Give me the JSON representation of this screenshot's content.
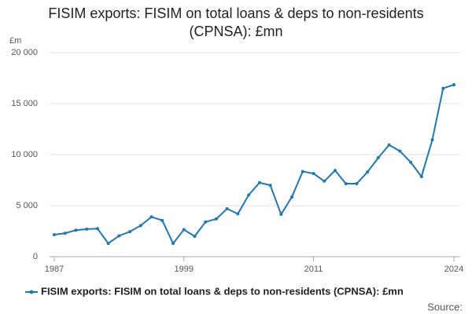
{
  "chart_data": {
    "type": "line",
    "title": "FISIM exports: FISIM on total loans & deps to non-residents (CPNSA): £mn",
    "y_unit": "£m",
    "source": "Source:",
    "x": [
      1987,
      1988,
      1989,
      1990,
      1991,
      1992,
      1993,
      1994,
      1995,
      1996,
      1997,
      1998,
      1999,
      2000,
      2001,
      2002,
      2003,
      2004,
      2005,
      2006,
      2007,
      2008,
      2009,
      2010,
      2011,
      2012,
      2013,
      2014,
      2015,
      2016,
      2017,
      2018,
      2019,
      2020,
      2021,
      2022,
      2023,
      2024
    ],
    "series": [
      {
        "name": "FISIM exports: FISIM on total loans & deps to non-residents (CPNSA): £mn",
        "color": "#1f77b4",
        "values": [
          2150,
          2300,
          2600,
          2700,
          2750,
          1300,
          2050,
          2450,
          3050,
          3900,
          3550,
          1300,
          2650,
          2000,
          3400,
          3700,
          4700,
          4200,
          6050,
          7250,
          7000,
          4150,
          5850,
          8350,
          8150,
          7400,
          8450,
          7150,
          7150,
          8300,
          9700,
          10950,
          10350,
          9250,
          7850,
          11450,
          16500,
          16850
        ]
      }
    ],
    "xlim": [
      1987,
      2024
    ],
    "xticks": [
      1987,
      1999,
      2011,
      2024
    ],
    "ylim": [
      0,
      20000
    ],
    "yticks": [
      0,
      {
        "value": 5000,
        "label": "5 000"
      },
      {
        "value": 10000,
        "label": "10 000"
      },
      {
        "value": 15000,
        "label": "15 000"
      },
      {
        "value": 20000,
        "label": "20 000"
      }
    ],
    "grid": true
  }
}
